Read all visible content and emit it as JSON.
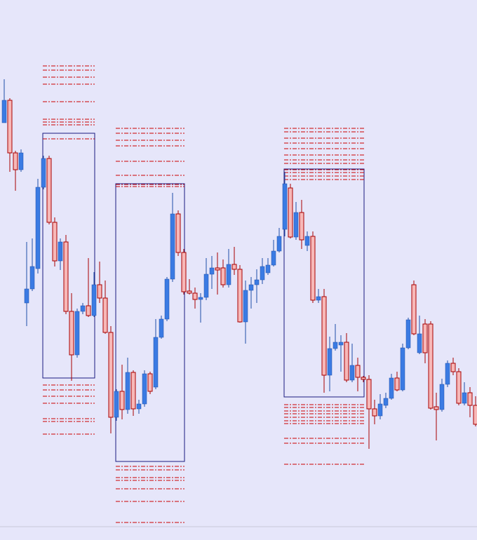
{
  "chart_data": {
    "type": "candlestick",
    "open": [
      595,
      627,
      552,
      528,
      338,
      358,
      387,
      503,
      544,
      453,
      398,
      425,
      326,
      264,
      326,
      334,
      320,
      364,
      345,
      296,
      175,
      212,
      186,
      239,
      187,
      194,
      237,
      218,
      289,
      315,
      372,
      465,
      410,
      355,
      352,
      343,
      346,
      379,
      388,
      388,
      364,
      393,
      386,
      311,
      356,
      364,
      371,
      381,
      392,
      412,
      443,
      502,
      432,
      467,
      420,
      433,
      342,
      347,
      235,
      273,
      278,
      282,
      228,
      249,
      232,
      229,
      187,
      177,
      192,
      202,
      231,
      214,
      274,
      364,
      267,
      308,
      308,
      190,
      186,
      222,
      252,
      240,
      195,
      210,
      192
    ],
    "high": [
      657,
      630,
      555,
      557,
      425,
      430,
      515,
      548,
      548,
      460,
      430,
      435,
      352,
      330,
      338,
      402,
      382,
      397,
      370,
      305,
      215,
      250,
      260,
      242,
      200,
      242,
      240,
      315,
      320,
      375,
      495,
      470,
      415,
      372,
      360,
      352,
      402,
      405,
      410,
      400,
      415,
      418,
      392,
      370,
      375,
      386,
      402,
      402,
      428,
      445,
      525,
      508,
      482,
      485,
      440,
      440,
      358,
      358,
      290,
      308,
      292,
      295,
      280,
      260,
      234,
      235,
      200,
      208,
      210,
      237,
      240,
      280,
      317,
      370,
      320,
      315,
      312,
      210,
      230,
      256,
      260,
      245,
      225,
      218,
      205
    ],
    "low": [
      595,
      525,
      498,
      525,
      305,
      355,
      380,
      500,
      450,
      390,
      385,
      322,
      227,
      260,
      322,
      318,
      318,
      338,
      294,
      152,
      170,
      172,
      180,
      177,
      180,
      190,
      208,
      215,
      287,
      312,
      368,
      405,
      350,
      350,
      330,
      310,
      342,
      358,
      350,
      360,
      360,
      378,
      310,
      280,
      330,
      338,
      365,
      378,
      390,
      410,
      433,
      430,
      428,
      415,
      412,
      338,
      338,
      210,
      212,
      270,
      240,
      225,
      225,
      212,
      225,
      130,
      165,
      172,
      188,
      200,
      212,
      212,
      272,
      292,
      265,
      252,
      186,
      142,
      183,
      218,
      235,
      192,
      192,
      175,
      162
    ],
    "close": [
      627,
      552,
      528,
      552,
      358,
      390,
      503,
      544,
      453,
      398,
      425,
      326,
      264,
      326,
      334,
      320,
      364,
      345,
      296,
      175,
      212,
      186,
      239,
      187,
      194,
      237,
      212,
      289,
      315,
      372,
      465,
      410,
      354,
      352,
      343,
      346,
      379,
      388,
      385,
      364,
      393,
      386,
      311,
      356,
      364,
      371,
      390,
      392,
      412,
      433,
      508,
      432,
      467,
      428,
      433,
      342,
      347,
      235,
      273,
      282,
      282,
      228,
      249,
      232,
      229,
      187,
      177,
      194,
      202,
      231,
      214,
      274,
      314,
      294,
      294,
      267,
      188,
      186,
      222,
      252,
      240,
      195,
      210,
      192,
      165
    ],
    "up_color": "#3b7be3",
    "up_edge": "#1f4fa8",
    "down_color": "#f7b8b8",
    "down_edge": "#a80000",
    "ylim": [
      0,
      770
    ],
    "zones": [
      {
        "start": 7,
        "end": 16,
        "high": 580,
        "low": 231,
        "levels": [
          676,
          670,
          660,
          650,
          625,
          600,
          596,
          592,
          572,
          221,
          214,
          205,
          195,
          173,
          169,
          151
        ]
      },
      {
        "start": 20,
        "end": 32,
        "high": 508,
        "low": 112,
        "levels": [
          587,
          580,
          570,
          562,
          540,
          520,
          507,
          504,
          105,
          100,
          89,
          85,
          73,
          55,
          25
        ]
      },
      {
        "start": 50,
        "end": 64,
        "high": 529,
        "low": 204,
        "levels": [
          587,
          582,
          573,
          566,
          558,
          549,
          542,
          537,
          528,
          524,
          519,
          514,
          193,
          189,
          184,
          180,
          175,
          170,
          166,
          145,
          138,
          108
        ]
      }
    ],
    "zone_color": "#1a1a80",
    "level_color": "#cc0000"
  }
}
